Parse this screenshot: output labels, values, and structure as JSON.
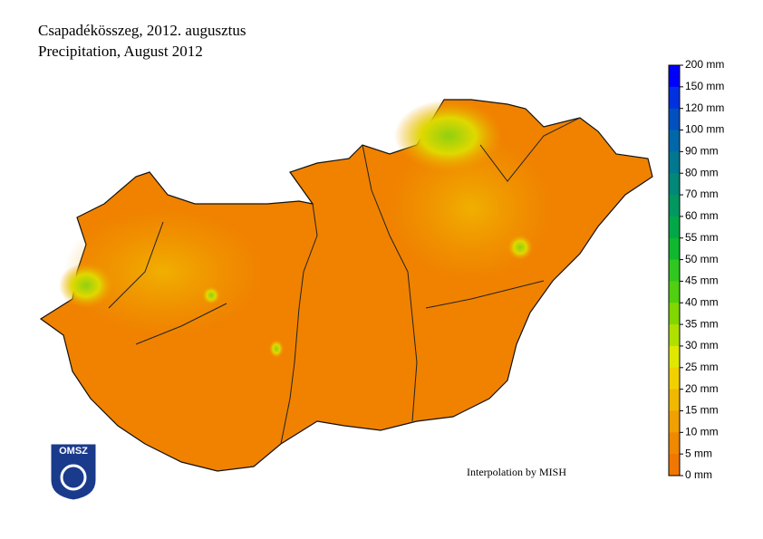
{
  "title": "Csapadékösszeg, 2012. augusztus",
  "subtitle": "Precipitation, August 2012",
  "legend": {
    "labels": [
      "200 mm",
      "150 mm",
      "120 mm",
      "100 mm",
      "90 mm",
      "80 mm",
      "70 mm",
      "60 mm",
      "55 mm",
      "50 mm",
      "45 mm",
      "40 mm",
      "35 mm",
      "30 mm",
      "25 mm",
      "20 mm",
      "15 mm",
      "10 mm",
      "5 mm",
      "0 mm"
    ],
    "colors": [
      "#0000ff",
      "#0030e0",
      "#0050c0",
      "#0068a8",
      "#007890",
      "#008878",
      "#009860",
      "#00a848",
      "#10b830",
      "#30c820",
      "#50d010",
      "#80d800",
      "#b0e000",
      "#e0e800",
      "#f0d000",
      "#f0b800",
      "#f0a000",
      "#f08800",
      "#f07800"
    ]
  },
  "credit": "Interpolation by MISH",
  "logo": "OMSZ"
}
